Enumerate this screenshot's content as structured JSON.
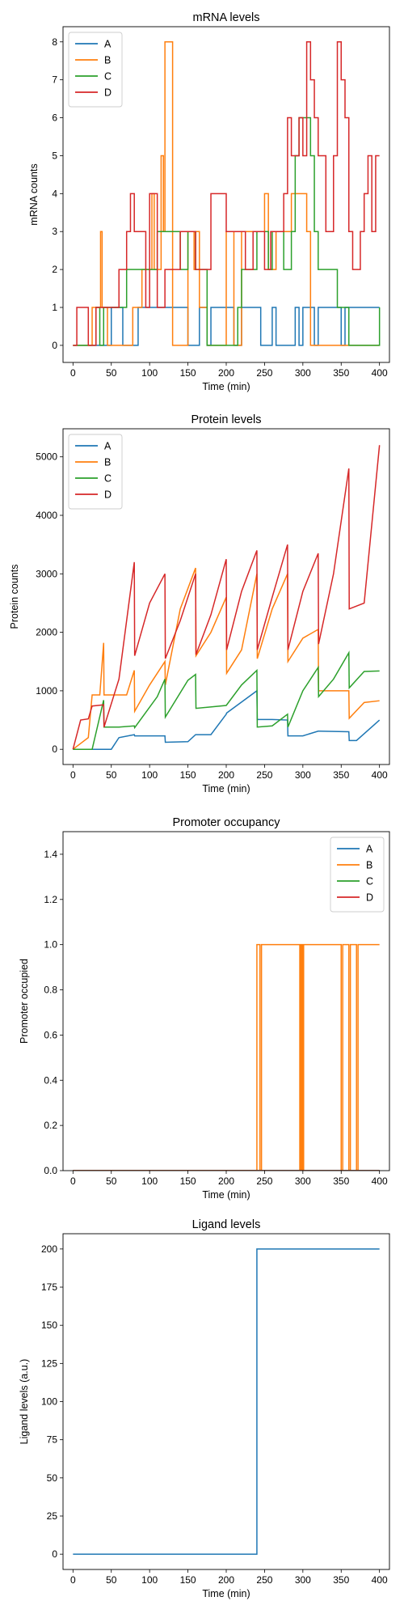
{
  "colors": {
    "A": "#1f77b4",
    "B": "#ff7f0e",
    "C": "#2ca02c",
    "D": "#d62728"
  },
  "chart_data": [
    {
      "type": "line",
      "step": true,
      "title": "mRNA levels",
      "xlabel": "Time (min)",
      "ylabel": "mRNA counts",
      "xlim": [
        -13,
        413
      ],
      "ylim": [
        -0.45,
        8.4
      ],
      "xticks": [
        0,
        50,
        100,
        150,
        200,
        250,
        300,
        350,
        400
      ],
      "yticks": [
        0,
        1,
        2,
        3,
        4,
        5,
        6,
        7,
        8
      ],
      "legend": "top-left",
      "series": [
        {
          "name": "A",
          "color": "#1f77b4",
          "x": [
            0,
            45,
            50,
            60,
            65,
            85,
            120,
            150,
            165,
            175,
            180,
            200,
            210,
            215,
            220,
            240,
            245,
            260,
            265,
            290,
            295,
            300,
            310,
            315,
            320,
            345,
            350,
            355,
            360,
            400
          ],
          "y": [
            0,
            0,
            1,
            1,
            0,
            1,
            1,
            0,
            1,
            0,
            1,
            1,
            0,
            0,
            1,
            1,
            0,
            1,
            0,
            1,
            0,
            1,
            1,
            0,
            1,
            1,
            0,
            1,
            1,
            1
          ]
        },
        {
          "name": "B",
          "color": "#ff7f0e",
          "x": [
            0,
            20,
            25,
            33,
            36,
            38,
            45,
            70,
            78,
            80,
            90,
            100,
            103,
            106,
            112,
            115,
            118,
            120,
            130,
            150,
            152,
            158,
            160,
            165,
            175,
            200,
            210,
            220,
            240,
            245,
            250,
            255,
            265,
            275,
            285,
            295,
            300,
            305,
            310,
            400
          ],
          "y": [
            0,
            0,
            1,
            1,
            3,
            1,
            0,
            0,
            1,
            1,
            2,
            2,
            4,
            2,
            2,
            5,
            3,
            8,
            0,
            3,
            3,
            2,
            3,
            1,
            0,
            3,
            0,
            3,
            3,
            3,
            4,
            2,
            3,
            3,
            4,
            4,
            4,
            3,
            0,
            0
          ]
        },
        {
          "name": "C",
          "color": "#2ca02c",
          "x": [
            0,
            25,
            30,
            35,
            40,
            70,
            100,
            110,
            140,
            150,
            160,
            175,
            200,
            215,
            220,
            240,
            255,
            260,
            275,
            285,
            290,
            295,
            300,
            310,
            315,
            320,
            325,
            345,
            360,
            400
          ],
          "y": [
            0,
            0,
            1,
            0,
            1,
            2,
            2,
            3,
            2,
            3,
            2,
            0,
            0,
            1,
            2,
            3,
            2,
            3,
            2,
            3,
            5,
            6,
            6,
            5,
            3,
            2,
            2,
            1,
            0,
            1
          ]
        },
        {
          "name": "D",
          "color": "#d62728",
          "x": [
            0,
            5,
            15,
            20,
            30,
            40,
            55,
            60,
            70,
            75,
            80,
            95,
            100,
            110,
            120,
            130,
            140,
            160,
            170,
            180,
            200,
            220,
            225,
            235,
            240,
            250,
            258,
            265,
            275,
            280,
            285,
            295,
            300,
            305,
            310,
            315,
            320,
            330,
            340,
            345,
            350,
            355,
            360,
            365,
            375,
            380,
            385,
            390,
            395,
            400
          ],
          "y": [
            0,
            1,
            1,
            0,
            1,
            1,
            1,
            2,
            3,
            4,
            3,
            1,
            4,
            1,
            2,
            2,
            3,
            2,
            2,
            4,
            3,
            3,
            2,
            3,
            3,
            2,
            3,
            3,
            4,
            6,
            5,
            6,
            5,
            8,
            7,
            6,
            5,
            3,
            5,
            8,
            7,
            6,
            3,
            2,
            3,
            4,
            5,
            3,
            5,
            5
          ]
        }
      ]
    },
    {
      "type": "line",
      "title": "Protein levels",
      "xlabel": "Time (min)",
      "ylabel": "Protein counts",
      "xlim": [
        -13,
        413
      ],
      "ylim": [
        -260,
        5480
      ],
      "xticks": [
        0,
        50,
        100,
        150,
        200,
        250,
        300,
        350,
        400
      ],
      "yticks": [
        0,
        1000,
        2000,
        3000,
        4000,
        5000
      ],
      "legend": "top-left",
      "series": [
        {
          "name": "A",
          "color": "#1f77b4",
          "x": [
            0,
            50,
            60,
            80,
            80.5,
            120,
            120.5,
            150,
            160,
            180,
            200,
            200.5,
            240,
            240.5,
            260,
            280,
            280.5,
            300,
            320,
            320.5,
            360,
            360.5,
            370,
            400
          ],
          "y": [
            0,
            0,
            200,
            250,
            230,
            230,
            120,
            130,
            250,
            250,
            600,
            620,
            1000,
            510,
            510,
            500,
            230,
            230,
            310,
            310,
            300,
            150,
            150,
            500
          ]
        },
        {
          "name": "B",
          "color": "#ff7f0e",
          "x": [
            0,
            20,
            25,
            35,
            40,
            40.5,
            70,
            80,
            80.5,
            100,
            120,
            120.5,
            140,
            160,
            160.5,
            180,
            200,
            200.5,
            220,
            240,
            240.5,
            260,
            280,
            280.5,
            300,
            320,
            320.5,
            360,
            360.5,
            380,
            400
          ],
          "y": [
            0,
            200,
            930,
            930,
            1820,
            930,
            930,
            1350,
            650,
            1100,
            1500,
            1100,
            2400,
            3100,
            1600,
            2000,
            2600,
            1300,
            1700,
            3000,
            1550,
            2400,
            3000,
            1500,
            1900,
            2050,
            1000,
            1000,
            530,
            800,
            830
          ]
        },
        {
          "name": "C",
          "color": "#2ca02c",
          "x": [
            0,
            25,
            40,
            40.5,
            60,
            80,
            80.5,
            110,
            120,
            120.5,
            150,
            160,
            160.5,
            200,
            220,
            240,
            240.5,
            260,
            280,
            280.5,
            300,
            320,
            320.5,
            340,
            360,
            360.5,
            380,
            400
          ],
          "y": [
            0,
            0,
            840,
            380,
            380,
            400,
            370,
            900,
            1200,
            550,
            1180,
            1280,
            700,
            750,
            1100,
            1350,
            380,
            400,
            600,
            380,
            1000,
            1400,
            900,
            1200,
            1650,
            1050,
            1330,
            1340
          ]
        },
        {
          "name": "D",
          "color": "#d62728",
          "x": [
            0,
            10,
            20,
            25,
            40,
            40.5,
            60,
            80,
            80.5,
            100,
            120,
            120.5,
            140,
            160,
            160.5,
            180,
            200,
            200.5,
            220,
            240,
            240.5,
            260,
            280,
            280.5,
            300,
            320,
            320.5,
            340,
            360,
            360.5,
            380,
            400
          ],
          "y": [
            0,
            500,
            520,
            740,
            760,
            380,
            1200,
            3200,
            1600,
            2500,
            3000,
            1550,
            2200,
            3000,
            1620,
            2300,
            3250,
            1700,
            2700,
            3400,
            1700,
            2600,
            3500,
            1700,
            2700,
            3350,
            1800,
            3000,
            4800,
            2400,
            2500,
            5200
          ]
        }
      ]
    },
    {
      "type": "line",
      "step": true,
      "title": "Promoter occupancy",
      "xlabel": "Time (min)",
      "ylabel": "Promoter occupied",
      "xlim": [
        -13,
        413
      ],
      "ylim": [
        0,
        1.5
      ],
      "xticks": [
        0,
        50,
        100,
        150,
        200,
        250,
        300,
        350,
        400
      ],
      "yticks": [
        0.0,
        0.2,
        0.4,
        0.6,
        0.8,
        1.0,
        1.2,
        1.4
      ],
      "legend": "top-right",
      "series": [
        {
          "name": "A",
          "color": "#1f77b4",
          "x": [
            0,
            400
          ],
          "y": [
            0,
            0
          ]
        },
        {
          "name": "B",
          "color": "#ff7f0e",
          "x": [
            0,
            240,
            242,
            244,
            246,
            296,
            297,
            298,
            299,
            300,
            301,
            350,
            352,
            360,
            362,
            370,
            372,
            400
          ],
          "y": [
            0,
            1,
            1,
            0,
            1,
            0,
            1,
            0,
            1,
            0,
            1,
            0,
            1,
            0,
            1,
            0,
            1,
            1
          ]
        },
        {
          "name": "C",
          "color": "#2ca02c",
          "x": [
            0,
            400
          ],
          "y": [
            0,
            0
          ]
        },
        {
          "name": "D",
          "color": "#d62728",
          "x": [
            0,
            400
          ],
          "y": [
            0,
            0
          ]
        }
      ]
    },
    {
      "type": "line",
      "step": true,
      "title": "Ligand levels",
      "xlabel": "Time (min)",
      "ylabel": "Ligand levels (a.u.)",
      "xlim": [
        -13,
        413
      ],
      "ylim": [
        -10,
        210
      ],
      "xticks": [
        0,
        50,
        100,
        150,
        200,
        250,
        300,
        350,
        400
      ],
      "yticks": [
        0,
        25,
        50,
        75,
        100,
        125,
        150,
        175,
        200
      ],
      "legend": "none",
      "series": [
        {
          "color": "#1f77b4",
          "x": [
            0,
            240,
            400
          ],
          "y": [
            0,
            200,
            200
          ]
        }
      ]
    }
  ]
}
